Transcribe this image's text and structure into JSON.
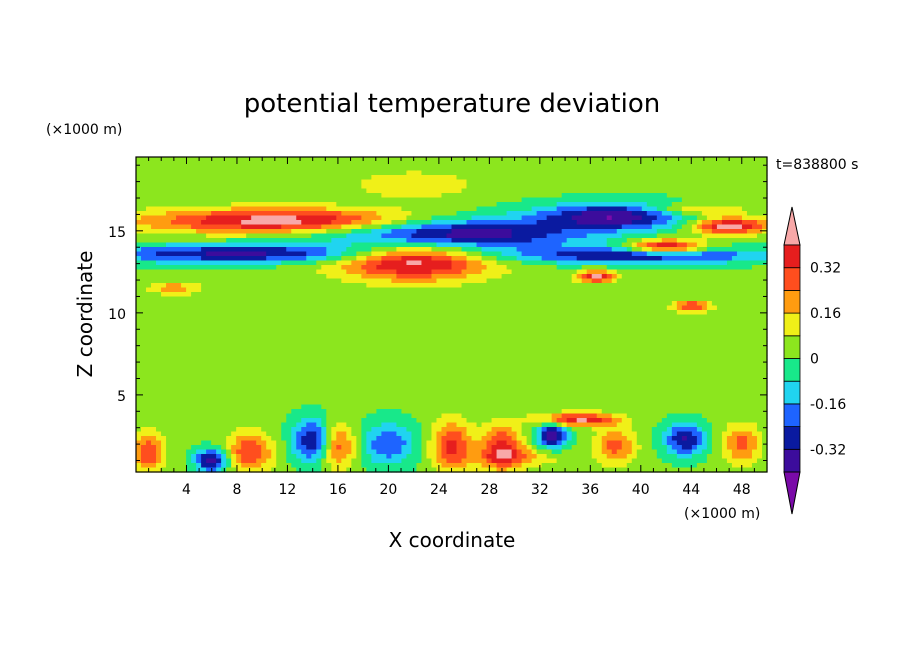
{
  "chart_data": {
    "type": "heatmap",
    "title": "potential temperature deviation",
    "xlabel": "X coordinate",
    "ylabel": "Z coordinate",
    "x_unit": "(×1000 m)",
    "y_unit": "(×1000 m)",
    "time_label": "t=838800 s",
    "xlim": [
      0,
      50
    ],
    "ylim": [
      0.3,
      19.5
    ],
    "x_ticks": [
      4,
      8,
      12,
      16,
      20,
      24,
      28,
      32,
      36,
      40,
      44,
      48
    ],
    "y_ticks": [
      5,
      10,
      15
    ],
    "colorbar": {
      "levels": [
        -0.4,
        -0.32,
        -0.24,
        -0.16,
        -0.08,
        0,
        0.08,
        0.16,
        0.24,
        0.32,
        0.4
      ],
      "tick_labels": [
        "-0.32",
        "-0.16",
        "0",
        "0.16",
        "0.32"
      ],
      "tick_values": [
        -0.32,
        -0.16,
        0,
        0.16,
        0.32
      ],
      "colors": [
        "#7a0aa8",
        "#3c0c9c",
        "#0a1aa0",
        "#1e64ff",
        "#20d4f0",
        "#18e88a",
        "#8ce61e",
        "#f0f018",
        "#ff9c10",
        "#ff4e1e",
        "#e61e1e",
        "#f8a8a8"
      ]
    },
    "background_value": 0.02,
    "features": [
      {
        "x": 12,
        "z": 15.6,
        "rx": 11,
        "rz": 0.75,
        "value": 0.45
      },
      {
        "x": 25,
        "z": 14.8,
        "rx": 10,
        "rz": 1.0,
        "value": -0.45
      },
      {
        "x": 22,
        "z": 13.2,
        "rx": 6,
        "rz": 1.2,
        "value": 0.45
      },
      {
        "x": 8,
        "z": 13.6,
        "rx": 12,
        "rz": 0.55,
        "value": -0.35
      },
      {
        "x": 40,
        "z": 13.5,
        "rx": 10,
        "rz": 0.5,
        "value": -0.35
      },
      {
        "x": 38,
        "z": 15.9,
        "rx": 6,
        "rz": 0.8,
        "value": -0.4
      },
      {
        "x": 42,
        "z": 14.0,
        "rx": 3,
        "rz": 0.45,
        "value": 0.45
      },
      {
        "x": 47,
        "z": 15.3,
        "rx": 3,
        "rz": 0.5,
        "value": 0.45
      },
      {
        "x": 44,
        "z": 16.3,
        "rx": 4,
        "rz": 0.4,
        "value": 0.2
      },
      {
        "x": 36.5,
        "z": 12.2,
        "rx": 1.5,
        "rz": 0.35,
        "value": 0.4
      },
      {
        "x": 22,
        "z": 17.8,
        "rx": 5,
        "rz": 0.9,
        "value": 0.12
      },
      {
        "x": 3,
        "z": 11.5,
        "rx": 2,
        "rz": 0.4,
        "value": 0.2
      },
      {
        "x": 44,
        "z": 10.4,
        "rx": 1.5,
        "rz": 0.35,
        "value": 0.3
      },
      {
        "x": 35,
        "z": 3.5,
        "rx": 3,
        "rz": 0.4,
        "value": 0.4
      },
      {
        "x": 9,
        "z": 1.5,
        "rx": 1.8,
        "rz": 1.2,
        "value": 0.3
      },
      {
        "x": 6,
        "z": 1.0,
        "rx": 1.3,
        "rz": 0.7,
        "value": -0.4
      },
      {
        "x": 14,
        "z": 2.2,
        "rx": 1.6,
        "rz": 1.3,
        "value": -0.35
      },
      {
        "x": 16,
        "z": 1.9,
        "rx": 1.4,
        "rz": 1.3,
        "value": 0.3
      },
      {
        "x": 20,
        "z": 2.0,
        "rx": 2.2,
        "rz": 1.3,
        "value": -0.25
      },
      {
        "x": 25,
        "z": 1.9,
        "rx": 1.6,
        "rz": 1.5,
        "value": 0.32
      },
      {
        "x": 29,
        "z": 1.8,
        "rx": 1.6,
        "rz": 1.4,
        "value": 0.32
      },
      {
        "x": 33,
        "z": 2.5,
        "rx": 1.2,
        "rz": 0.8,
        "value": -0.4
      },
      {
        "x": 38,
        "z": 1.9,
        "rx": 1.6,
        "rz": 1.1,
        "value": 0.25
      },
      {
        "x": 43.5,
        "z": 2.3,
        "rx": 1.6,
        "rz": 1.0,
        "value": -0.35
      },
      {
        "x": 48,
        "z": 2.0,
        "rx": 1.5,
        "rz": 1.2,
        "value": 0.25
      },
      {
        "x": 1,
        "z": 1.5,
        "rx": 1.2,
        "rz": 1.2,
        "value": 0.3
      },
      {
        "x": 30,
        "z": 1.2,
        "rx": 4,
        "rz": 0.6,
        "value": 0.15
      },
      {
        "x": 11,
        "z": 7.5,
        "rx": 4,
        "rz": 1.5,
        "value": 0.05
      },
      {
        "x": 36,
        "z": 7.0,
        "rx": 5,
        "rz": 1.5,
        "value": 0.06
      }
    ]
  }
}
